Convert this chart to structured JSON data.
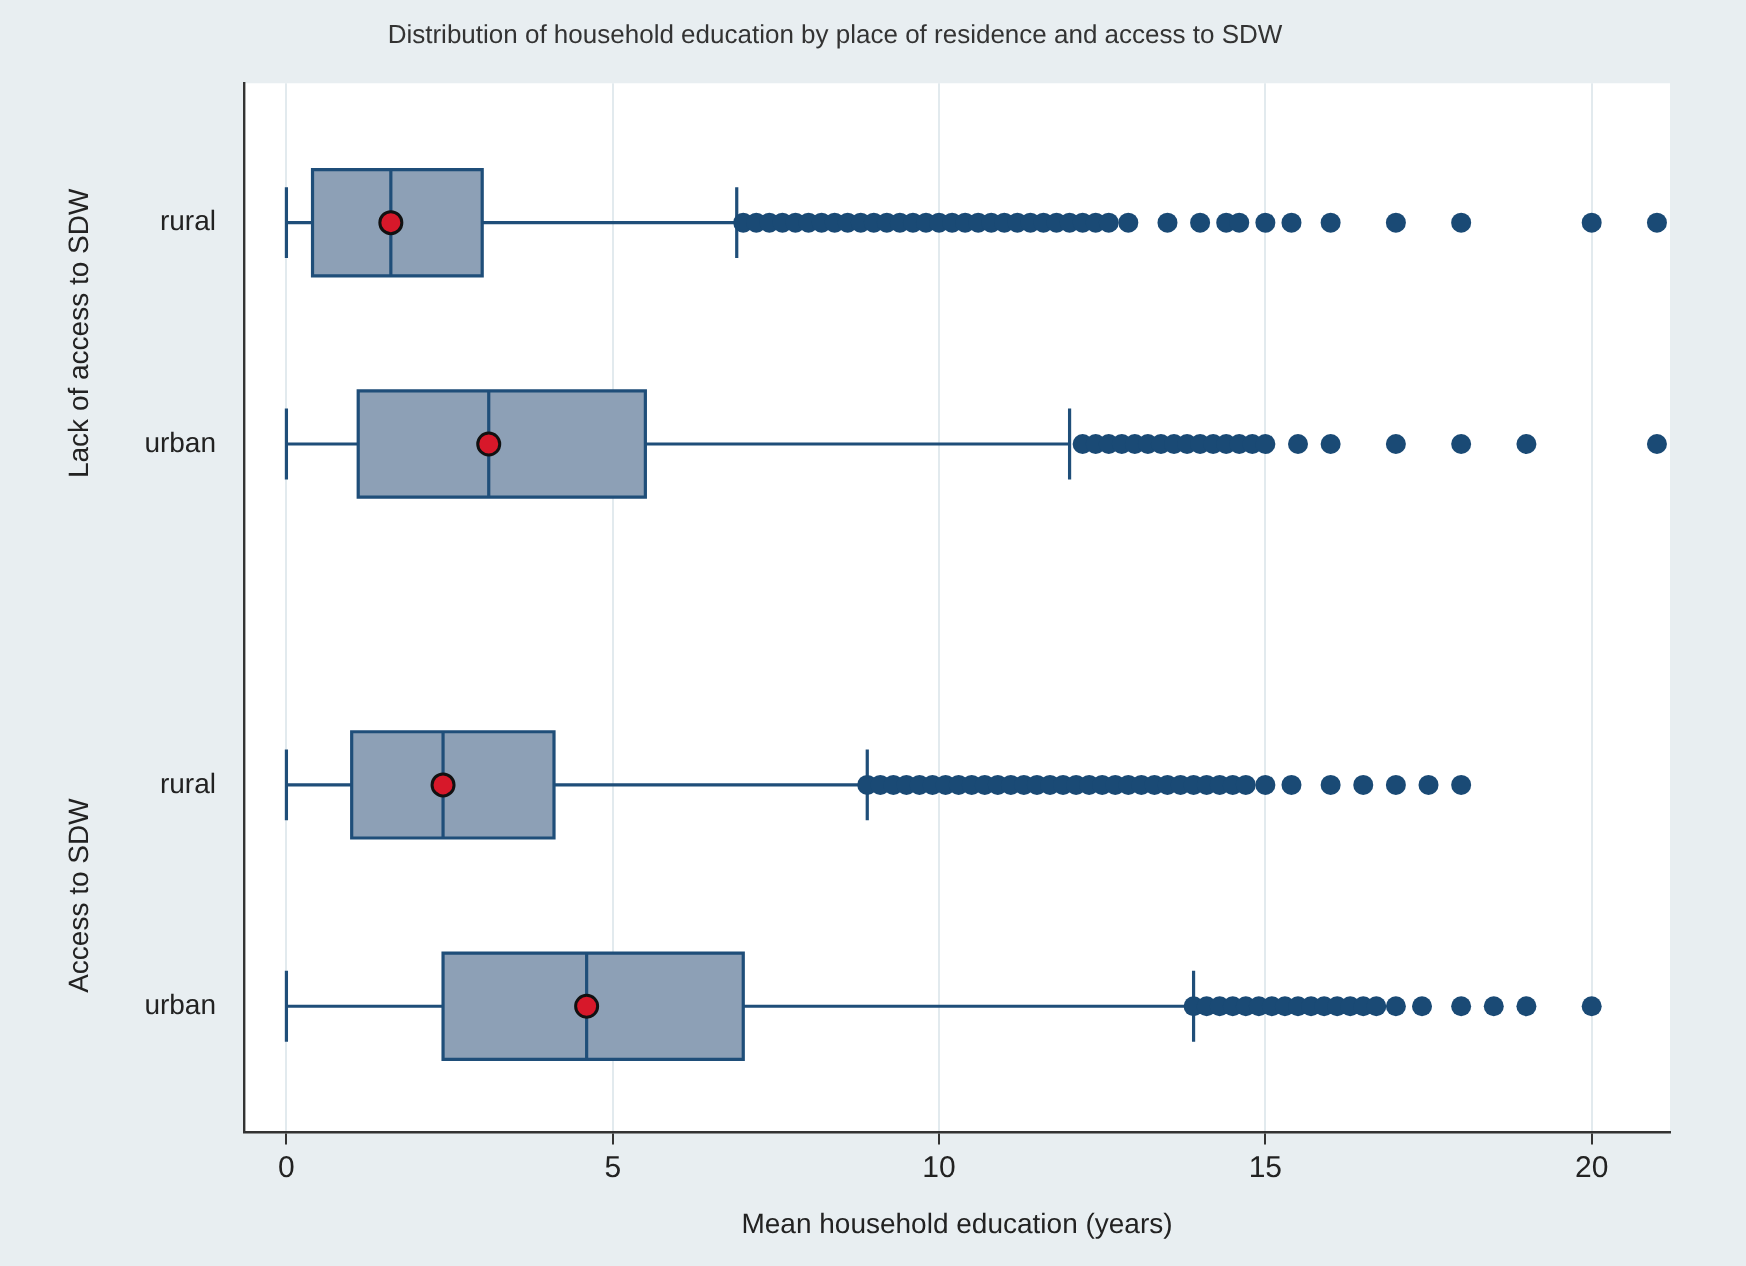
{
  "chart_data": {
    "type": "box",
    "orientation": "horizontal",
    "title": "Distribution of household education by place of residence and access to SDW",
    "xlabel": "Mean household education (years)",
    "categories": [
      "rural",
      "urban",
      "rural",
      "urban"
    ],
    "annotations": [
      "Lack of access to SDW",
      "Access to SDW"
    ],
    "color": "#8da0b6",
    "boxes": [
      {
        "low": 0,
        "q1": 0.4,
        "median": 1.6,
        "q3": 3.0,
        "high": 6.9,
        "mean": 1.6,
        "outliers": [
          7.0,
          7.2,
          7.4,
          7.6,
          7.8,
          8.0,
          8.2,
          8.4,
          8.6,
          8.8,
          9.0,
          9.2,
          9.4,
          9.6,
          9.8,
          10.0,
          10.2,
          10.4,
          10.6,
          10.8,
          11.0,
          11.2,
          11.4,
          11.6,
          11.8,
          12.0,
          12.2,
          12.4,
          12.6,
          12.9,
          13.5,
          14.0,
          14.4,
          14.6,
          15.0,
          15.4,
          16.0,
          17.0,
          18.0,
          20.0,
          21.0
        ]
      },
      {
        "low": 0,
        "q1": 1.1,
        "median": 3.1,
        "q3": 5.5,
        "high": 12.0,
        "mean": 3.1,
        "outliers": [
          12.2,
          12.4,
          12.6,
          12.8,
          13.0,
          13.2,
          13.4,
          13.6,
          13.8,
          14.0,
          14.2,
          14.4,
          14.6,
          14.8,
          15.0,
          15.5,
          16.0,
          17.0,
          18.0,
          19.0,
          21.0
        ]
      },
      {
        "low": 0,
        "q1": 1.0,
        "median": 2.4,
        "q3": 4.1,
        "high": 8.9,
        "mean": 2.4,
        "outliers": [
          8.9,
          9.1,
          9.3,
          9.5,
          9.7,
          9.9,
          10.1,
          10.3,
          10.5,
          10.7,
          10.9,
          11.1,
          11.3,
          11.5,
          11.7,
          11.9,
          12.1,
          12.3,
          12.5,
          12.7,
          12.9,
          13.1,
          13.3,
          13.5,
          13.7,
          13.9,
          14.1,
          14.3,
          14.5,
          14.7,
          15.0,
          15.4,
          16.0,
          16.5,
          17.0,
          17.5,
          18.0
        ]
      },
      {
        "low": 0,
        "q1": 2.4,
        "median": 4.6,
        "q3": 7.0,
        "high": 13.9,
        "mean": 4.6,
        "outliers": [
          13.9,
          14.1,
          14.3,
          14.5,
          14.7,
          14.9,
          15.1,
          15.3,
          15.5,
          15.7,
          15.9,
          16.1,
          16.3,
          16.5,
          16.7,
          17.0,
          17.4,
          18.0,
          18.5,
          19.0,
          20.0
        ]
      }
    ],
    "xlim": [
      -0.65,
      21.2
    ],
    "xticks": [
      0,
      5,
      10,
      15,
      20
    ],
    "grid": "x"
  }
}
